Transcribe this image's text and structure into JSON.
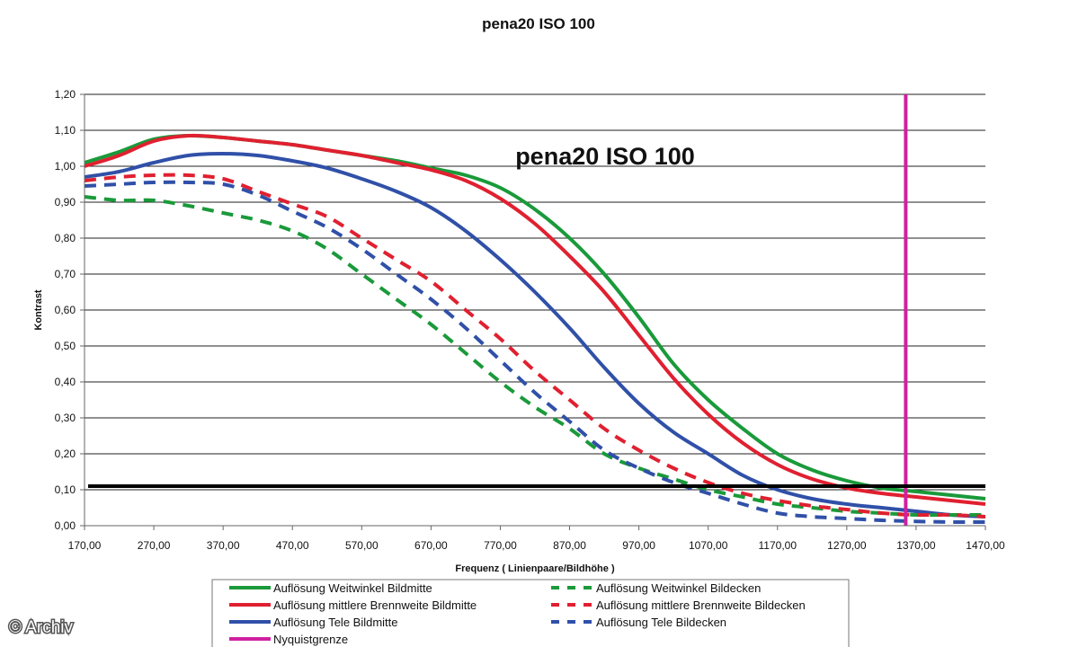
{
  "credit": "© Archiv",
  "chart_data": {
    "type": "line",
    "title": "pena20 ISO 100",
    "inner_title": "pena20 ISO 100",
    "xlabel": "Frequenz ( Linienpaare/Bildhöhe )",
    "ylabel": "Kontrast",
    "xlim": [
      170,
      1470
    ],
    "ylim": [
      0,
      1.2
    ],
    "x_ticks": [
      170,
      270,
      370,
      470,
      570,
      670,
      770,
      870,
      970,
      1070,
      1170,
      1270,
      1370,
      1470
    ],
    "x_tick_labels": [
      "170,00",
      "270,00",
      "370,00",
      "470,00",
      "570,00",
      "670,00",
      "770,00",
      "870,00",
      "970,00",
      "1070,00",
      "1170,00",
      "1270,00",
      "1370,00",
      "1470,00"
    ],
    "y_ticks": [
      0,
      0.1,
      0.2,
      0.3,
      0.4,
      0.5,
      0.6,
      0.7,
      0.8,
      0.9,
      1.0,
      1.1,
      1.2
    ],
    "y_tick_labels": [
      "0,00",
      "0,10",
      "0,20",
      "0,30",
      "0,40",
      "0,50",
      "0,60",
      "0,70",
      "0,80",
      "0,90",
      "1,00",
      "1,10",
      "1,20"
    ],
    "grid": "horizontal",
    "legend_position": "bottom",
    "threshold_line": {
      "y": 0.11,
      "color": "#000000"
    },
    "series": [
      {
        "name": "Auflösung Weitwinkel Bildmitte",
        "color": "#1a9a3a",
        "dash": "solid",
        "x": [
          170,
          220,
          270,
          320,
          370,
          420,
          470,
          520,
          570,
          620,
          670,
          720,
          770,
          820,
          870,
          920,
          970,
          1020,
          1070,
          1120,
          1170,
          1220,
          1270,
          1320,
          1370,
          1420,
          1470
        ],
        "y": [
          1.01,
          1.04,
          1.075,
          1.085,
          1.08,
          1.07,
          1.06,
          1.045,
          1.03,
          1.015,
          0.995,
          0.975,
          0.94,
          0.88,
          0.8,
          0.7,
          0.58,
          0.45,
          0.35,
          0.27,
          0.2,
          0.155,
          0.125,
          0.105,
          0.095,
          0.085,
          0.075
        ]
      },
      {
        "name": "Auflösung mittlere Brennweite Bildmitte",
        "color": "#e02030",
        "dash": "solid",
        "x": [
          170,
          220,
          270,
          320,
          370,
          420,
          470,
          520,
          570,
          620,
          670,
          720,
          770,
          820,
          870,
          920,
          970,
          1020,
          1070,
          1120,
          1170,
          1220,
          1270,
          1320,
          1370,
          1420,
          1470
        ],
        "y": [
          1.0,
          1.03,
          1.07,
          1.085,
          1.08,
          1.07,
          1.06,
          1.045,
          1.03,
          1.01,
          0.99,
          0.96,
          0.91,
          0.84,
          0.75,
          0.65,
          0.53,
          0.41,
          0.31,
          0.23,
          0.17,
          0.13,
          0.105,
          0.09,
          0.08,
          0.07,
          0.06
        ]
      },
      {
        "name": "Auflösung Tele Bildmitte",
        "color": "#3050a8",
        "dash": "solid",
        "x": [
          170,
          220,
          270,
          320,
          370,
          420,
          470,
          520,
          570,
          620,
          670,
          720,
          770,
          820,
          870,
          920,
          970,
          1020,
          1070,
          1120,
          1170,
          1220,
          1270,
          1320,
          1370,
          1420,
          1470
        ],
        "y": [
          0.97,
          0.985,
          1.01,
          1.03,
          1.035,
          1.03,
          1.015,
          0.995,
          0.965,
          0.93,
          0.885,
          0.82,
          0.74,
          0.65,
          0.55,
          0.44,
          0.34,
          0.26,
          0.2,
          0.14,
          0.1,
          0.075,
          0.06,
          0.05,
          0.04,
          0.03,
          0.025
        ]
      },
      {
        "name": "Auflösung Weitwinkel Bildecken",
        "color": "#1a9a3a",
        "dash": "dashed",
        "x": [
          170,
          220,
          270,
          320,
          370,
          420,
          470,
          520,
          570,
          620,
          670,
          720,
          770,
          820,
          870,
          920,
          970,
          1020,
          1070,
          1120,
          1170,
          1220,
          1270,
          1320,
          1370,
          1420,
          1470
        ],
        "y": [
          0.915,
          0.905,
          0.905,
          0.89,
          0.87,
          0.85,
          0.82,
          0.77,
          0.7,
          0.63,
          0.56,
          0.48,
          0.4,
          0.33,
          0.27,
          0.2,
          0.16,
          0.13,
          0.1,
          0.08,
          0.06,
          0.05,
          0.04,
          0.035,
          0.03,
          0.03,
          0.03
        ]
      },
      {
        "name": "Auflösung mittlere Brennweite Bildecken",
        "color": "#e02030",
        "dash": "dashed",
        "x": [
          170,
          220,
          270,
          320,
          370,
          420,
          470,
          520,
          570,
          620,
          670,
          720,
          770,
          820,
          870,
          920,
          970,
          1020,
          1070,
          1120,
          1170,
          1220,
          1270,
          1320,
          1370,
          1420,
          1470
        ],
        "y": [
          0.96,
          0.97,
          0.975,
          0.975,
          0.965,
          0.93,
          0.895,
          0.86,
          0.8,
          0.74,
          0.68,
          0.6,
          0.52,
          0.43,
          0.35,
          0.27,
          0.21,
          0.16,
          0.12,
          0.09,
          0.07,
          0.055,
          0.045,
          0.035,
          0.03,
          0.03,
          0.025
        ]
      },
      {
        "name": "Auflösung Tele Bildecken",
        "color": "#3050a8",
        "dash": "dashed",
        "x": [
          170,
          220,
          270,
          320,
          370,
          420,
          470,
          520,
          570,
          620,
          670,
          720,
          770,
          820,
          870,
          920,
          970,
          1020,
          1070,
          1120,
          1170,
          1220,
          1270,
          1320,
          1370,
          1420,
          1470
        ],
        "y": [
          0.945,
          0.95,
          0.955,
          0.955,
          0.95,
          0.92,
          0.875,
          0.83,
          0.77,
          0.7,
          0.63,
          0.55,
          0.46,
          0.37,
          0.29,
          0.21,
          0.16,
          0.12,
          0.09,
          0.06,
          0.035,
          0.025,
          0.02,
          0.015,
          0.012,
          0.01,
          0.01
        ]
      },
      {
        "name": "Nyquistgrenze",
        "color": "#d020a0",
        "dash": "solid",
        "orientation": "vertical",
        "x": [
          1355,
          1355
        ],
        "y": [
          0,
          1.2
        ]
      }
    ]
  }
}
